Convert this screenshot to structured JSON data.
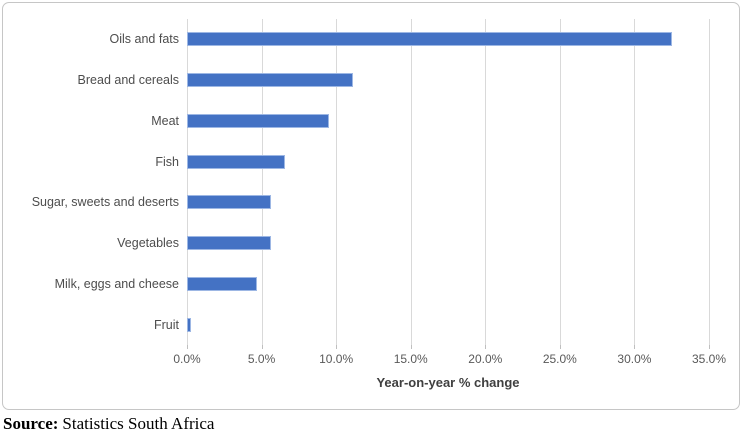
{
  "chart_data": {
    "type": "bar",
    "orientation": "horizontal",
    "title": "",
    "categories": [
      "Oils and fats",
      "Bread and cereals",
      "Meat",
      "Fish",
      "Sugar, sweets and deserts",
      "Vegetables",
      "Milk, eggs and cheese",
      "Fruit"
    ],
    "values": [
      32.5,
      11.1,
      9.5,
      6.6,
      5.6,
      5.6,
      4.7,
      0.3
    ],
    "xlabel": "Year-on-year % change",
    "ylabel": "",
    "x_tick_labels": [
      "0.0%",
      "5.0%",
      "10.0%",
      "15.0%",
      "20.0%",
      "25.0%",
      "30.0%",
      "35.0%"
    ],
    "xlim": [
      0,
      35
    ],
    "grid": true,
    "legend": false,
    "colors": {
      "bar_fill": "#4472C4",
      "bar_border": "#9DB7E4",
      "gridline": "#D9D9D9",
      "tick_mark": "#BFBFBF",
      "tick_label": "#595959",
      "category_label": "#4d4d4d",
      "axis_title": "#3f3f3f",
      "chart_border": "#c6c6c6"
    }
  },
  "source": {
    "label": "Source:",
    "text": "Statistics South Africa"
  }
}
